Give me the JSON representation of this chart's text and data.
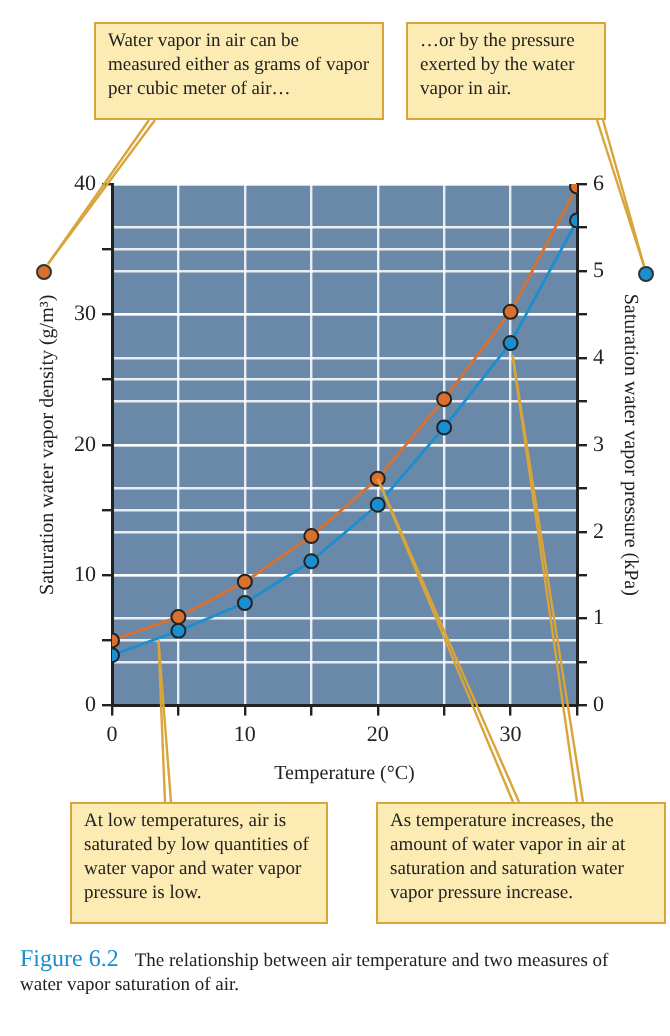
{
  "chart_data": {
    "type": "line",
    "xlabel": "Temperature (°C)",
    "ylabel": "Saturation water vapor density (g/m³)",
    "y2label": "Saturation water vapor pressure (kPa)",
    "x": [
      0,
      5,
      10,
      15,
      20,
      25,
      30,
      35
    ],
    "series": [
      {
        "color": "#d9702e",
        "values": [
          5.0,
          6.8,
          9.5,
          13.0,
          17.4,
          23.5,
          30.2,
          39.8
        ]
      },
      {
        "color": "#1a8fd0",
        "axis": "y2",
        "values": [
          0.58,
          0.86,
          1.18,
          1.66,
          2.31,
          3.2,
          4.17,
          5.58
        ]
      }
    ],
    "xlim": [
      0,
      35
    ],
    "xticks": [
      0,
      {
        "value": 5,
        "label": null
      },
      10,
      {
        "value": 15,
        "label": null
      },
      20,
      {
        "value": 25,
        "label": null
      },
      30,
      {
        "value": 35,
        "label": null
      }
    ],
    "ylim": [
      0,
      40
    ],
    "yticks": [
      0,
      {
        "value": 5,
        "label": null
      },
      10,
      {
        "value": 15,
        "label": null
      },
      20,
      {
        "value": 25,
        "label": null
      },
      30,
      {
        "value": 35,
        "label": null
      },
      40
    ],
    "y2lim": [
      0,
      6
    ],
    "y2ticks": [
      0,
      {
        "value": 0.5,
        "label": null
      },
      1,
      {
        "value": 1.5,
        "label": null
      },
      2,
      {
        "value": 2.5,
        "label": null
      },
      3,
      {
        "value": 3.5,
        "label": null
      },
      4,
      {
        "value": 4.5,
        "label": null
      },
      5,
      {
        "value": 5.5,
        "label": null
      },
      6
    ],
    "grid": true,
    "marker": "circle",
    "legend": false,
    "annotations": [
      "Water vapor in air can be measured either as grams of vapor per cubic meter of air…",
      "…or by the pressure exerted by the water vapor in air.",
      {
        "text": "At low temperatures, air is saturated by low quantities of water vapor and water vapor pressure is low.",
        "x": 3.5,
        "y": 5
      },
      {
        "text": "As temperature increases, the amount of water vapor in air at saturation and saturation water vapor pressure increase.",
        "x": 20,
        "y": 17.4
      },
      "Figure 6.2",
      "The relationship between air temperature and two measures of water vapor saturation of air."
    ]
  }
}
